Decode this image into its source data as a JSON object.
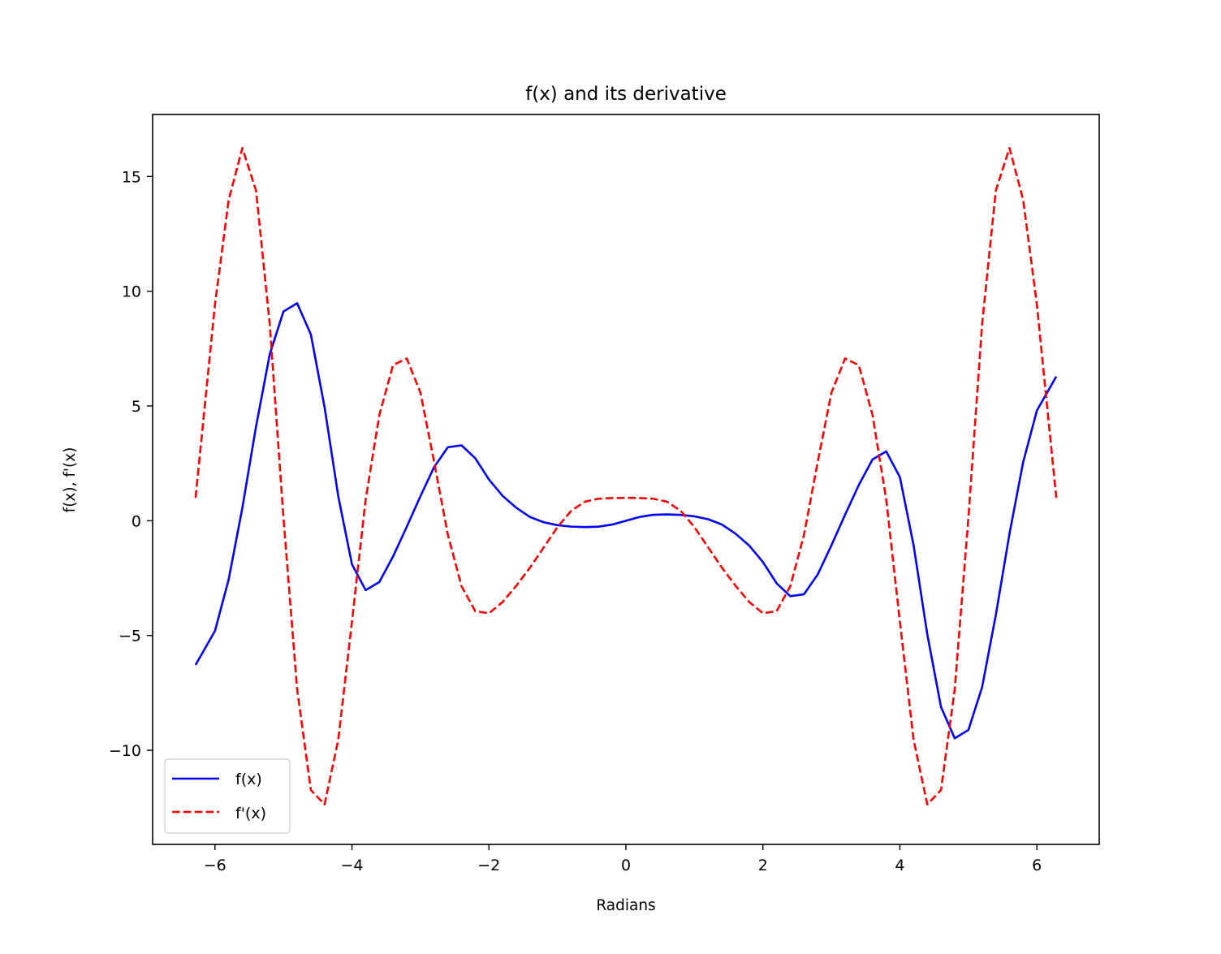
{
  "chart_data": {
    "type": "line",
    "title": "f(x) and its derivative",
    "xlabel": "Radians",
    "ylabel": "f(x), f'(x)",
    "xlim": [
      -6.91,
      6.91
    ],
    "ylim": [
      -14.1,
      17.7
    ],
    "xticks": [
      -6,
      -4,
      -2,
      0,
      2,
      4,
      6
    ],
    "xtick_labels": [
      "−6",
      "−4",
      "−2",
      "0",
      "2",
      "4",
      "6"
    ],
    "yticks": [
      -10,
      -5,
      0,
      5,
      10,
      15
    ],
    "ytick_labels": [
      "−10",
      "−5",
      "0",
      "5",
      "10",
      "15"
    ],
    "grid": false,
    "legend_position": "lower-left",
    "x": [
      -6.283,
      -6.0,
      -5.8,
      -5.6,
      -5.4,
      -5.2,
      -5.0,
      -4.8,
      -4.6,
      -4.4,
      -4.2,
      -4.0,
      -3.8,
      -3.6,
      -3.4,
      -3.2,
      -3.0,
      -2.8,
      -2.6,
      -2.4,
      -2.2,
      -2.0,
      -1.8,
      -1.6,
      -1.4,
      -1.2,
      -1.0,
      -0.8,
      -0.6,
      -0.4,
      -0.2,
      0.0,
      0.2,
      0.4,
      0.6,
      0.8,
      1.0,
      1.2,
      1.4,
      1.6,
      1.8,
      2.0,
      2.2,
      2.4,
      2.6,
      2.8,
      3.0,
      3.2,
      3.4,
      3.6,
      3.8,
      4.0,
      4.2,
      4.4,
      4.6,
      4.8,
      5.0,
      5.2,
      5.4,
      5.6,
      5.8,
      6.0,
      6.283
    ],
    "series": [
      {
        "name": "f(x)",
        "color": "#0000ff",
        "dash": "solid",
        "values": [
          -6.283,
          -4.801,
          -2.559,
          0.563,
          4.11,
          7.251,
          9.115,
          9.478,
          8.114,
          4.953,
          1.072,
          -1.896,
          -3.022,
          -2.669,
          -1.557,
          -0.265,
          1.071,
          2.341,
          3.202,
          3.286,
          2.726,
          1.799,
          1.082,
          0.563,
          0.163,
          -0.066,
          -0.192,
          -0.256,
          -0.277,
          -0.258,
          -0.166,
          0.0,
          0.166,
          0.258,
          0.277,
          0.256,
          0.192,
          0.066,
          -0.163,
          -0.563,
          -1.082,
          -1.799,
          -2.726,
          -3.286,
          -3.202,
          -2.341,
          -1.071,
          0.265,
          1.557,
          2.669,
          3.022,
          1.896,
          -1.072,
          -4.953,
          -8.114,
          -9.478,
          -9.115,
          -7.251,
          -4.11,
          -0.563,
          2.559,
          4.801,
          6.283
        ]
      },
      {
        "name": "f'(x)",
        "color": "#ff0000",
        "dash": "dashed",
        "values": [
          1.0,
          9.42,
          13.97,
          16.24,
          14.38,
          8.56,
          0.13,
          -7.35,
          -11.73,
          -12.36,
          -9.55,
          -4.4,
          0.93,
          4.61,
          6.78,
          7.07,
          5.58,
          2.56,
          -0.61,
          -2.85,
          -3.94,
          -4.03,
          -3.54,
          -2.83,
          -2.04,
          -1.16,
          -0.28,
          0.43,
          0.83,
          0.96,
          0.99,
          1.0,
          0.99,
          0.96,
          0.83,
          0.43,
          -0.28,
          -1.16,
          -2.04,
          -2.83,
          -3.54,
          -4.03,
          -3.94,
          -2.85,
          -0.61,
          2.56,
          5.58,
          7.07,
          6.78,
          4.61,
          0.93,
          -4.4,
          -9.55,
          -12.36,
          -11.73,
          -7.35,
          0.13,
          8.56,
          14.38,
          16.24,
          13.97,
          9.42,
          1.0
        ]
      }
    ]
  }
}
